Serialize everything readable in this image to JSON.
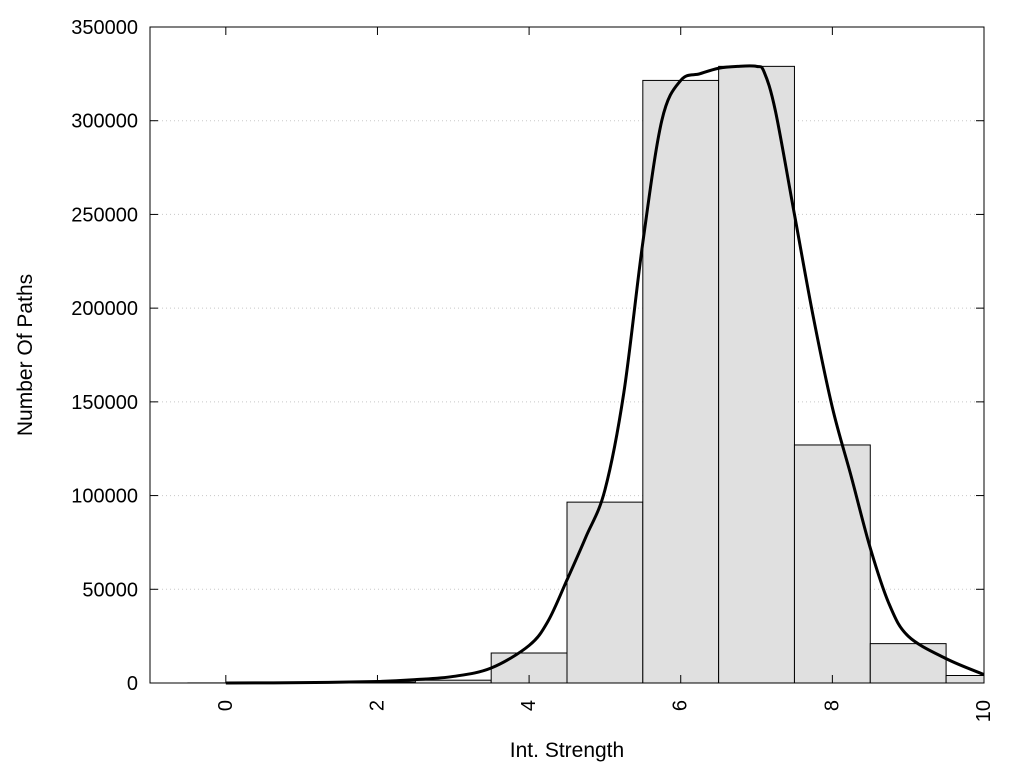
{
  "chart_data": {
    "type": "bar",
    "title": "",
    "xlabel": "Int. Strength",
    "ylabel": "Number Of Paths",
    "xlim": [
      -1,
      10
    ],
    "ylim": [
      0,
      350000
    ],
    "x_ticks": [
      "0",
      "2",
      "4",
      "6",
      "8",
      "10"
    ],
    "y_ticks": [
      "0",
      "50000",
      "100000",
      "150000",
      "200000",
      "250000",
      "300000",
      "350000"
    ],
    "grid": "horizontal dotted",
    "bars": {
      "centers": [
        0,
        1,
        2,
        3,
        4,
        5,
        6,
        7,
        8,
        9,
        10
      ],
      "values": [
        50,
        150,
        500,
        1500,
        16000,
        96500,
        321500,
        329000,
        127000,
        21000,
        4000
      ],
      "fill": "#e0e0e0",
      "edge": "#000000"
    },
    "curve": {
      "type": "line",
      "color": "#000000",
      "x": [
        0,
        1,
        2,
        2.5,
        3,
        3.5,
        4,
        4.25,
        4.5,
        4.75,
        5,
        5.25,
        5.5,
        5.75,
        6,
        6.25,
        6.5,
        6.75,
        7,
        7.1,
        7.25,
        7.5,
        7.75,
        8,
        8.25,
        8.5,
        8.75,
        9,
        9.5,
        10
      ],
      "y": [
        0,
        200,
        800,
        1800,
        3500,
        8000,
        20000,
        33000,
        55000,
        78000,
        103000,
        155000,
        235000,
        300000,
        321500,
        325000,
        328000,
        329000,
        329000,
        326000,
        305000,
        250000,
        195000,
        147000,
        110000,
        72000,
        42000,
        25000,
        13000,
        4500
      ]
    }
  }
}
